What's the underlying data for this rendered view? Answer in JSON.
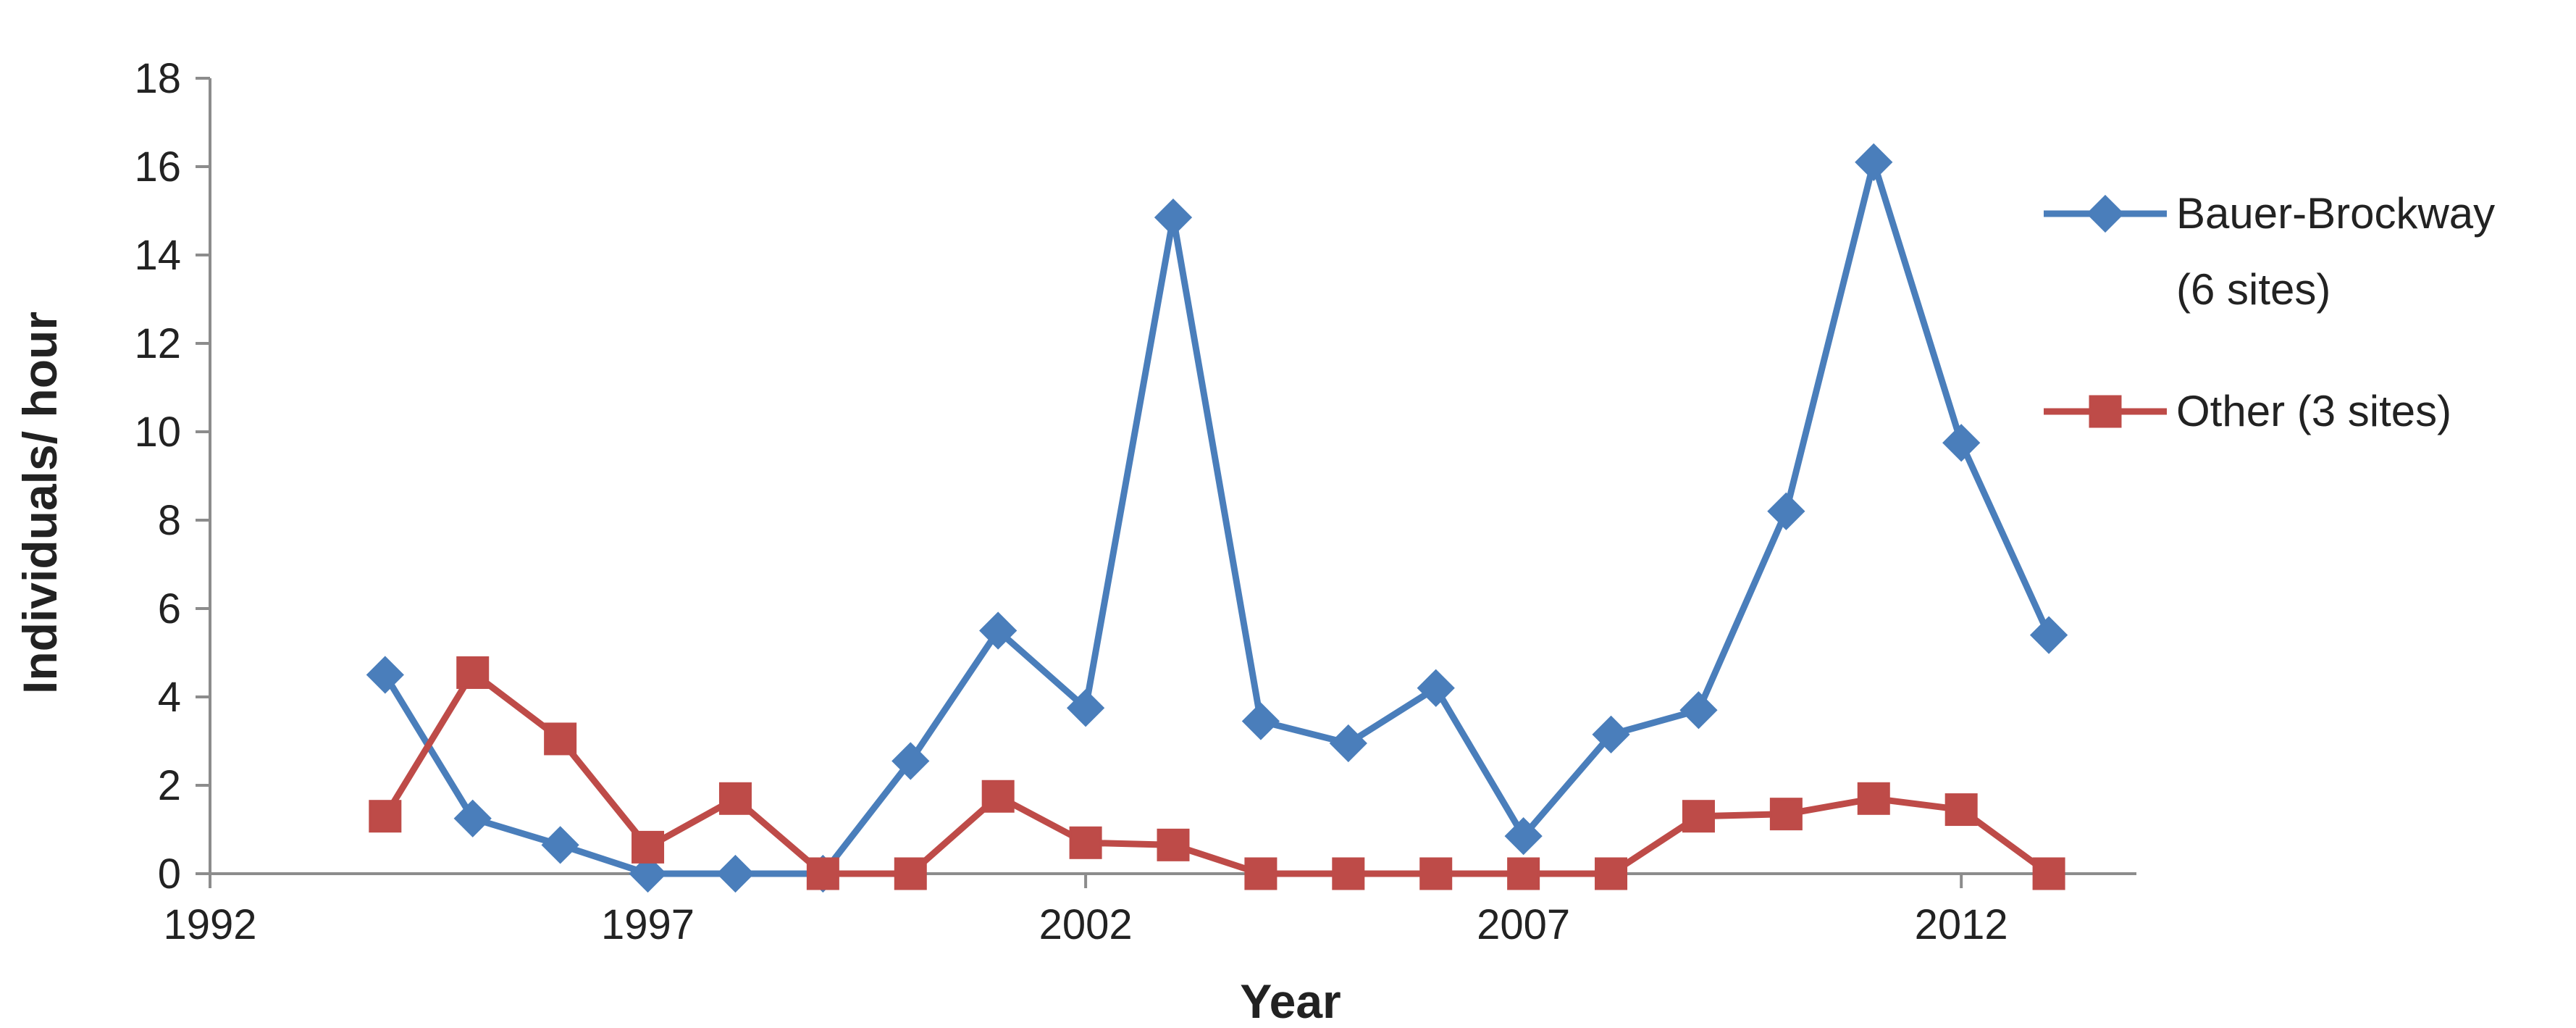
{
  "chart_data": {
    "type": "line",
    "xlabel": "Year",
    "ylabel": "Individuals/ hour",
    "xlim": [
      1992,
      2014
    ],
    "ylim": [
      0,
      18
    ],
    "x_ticks": [
      1992,
      1997,
      2002,
      2007,
      2012
    ],
    "y_ticks": [
      0,
      2,
      4,
      6,
      8,
      10,
      12,
      14,
      16,
      18
    ],
    "grid": false,
    "legend_position": "right",
    "series": [
      {
        "name": "Bauer-Brockway (6 sites)",
        "legend_lines": [
          "Bauer-Brockway",
          "(6 sites)"
        ],
        "color": "#4A7EBB",
        "marker": "diamond",
        "x": [
          1994,
          1995,
          1996,
          1997,
          1998,
          1999,
          2000,
          2001,
          2002,
          2003,
          2004,
          2005,
          2006,
          2007,
          2008,
          2009,
          2010,
          2011,
          2012,
          2013
        ],
        "y": [
          4.5,
          1.25,
          0.65,
          0,
          0,
          0,
          2.55,
          5.5,
          3.75,
          14.85,
          3.45,
          2.95,
          4.2,
          0.85,
          3.15,
          3.7,
          8.2,
          16.1,
          9.75,
          5.4
        ]
      },
      {
        "name": "Other (3 sites)",
        "legend_lines": [
          "Other (3 sites)"
        ],
        "color": "#BE4B48",
        "marker": "square",
        "x": [
          1994,
          1995,
          1996,
          1997,
          1998,
          1999,
          2000,
          2001,
          2002,
          2003,
          2004,
          2005,
          2006,
          2007,
          2008,
          2009,
          2010,
          2011,
          2012,
          2013
        ],
        "y": [
          1.3,
          4.55,
          3.05,
          0.6,
          1.7,
          0,
          0,
          1.75,
          0.7,
          0.65,
          0,
          0,
          0,
          0,
          0,
          1.3,
          1.35,
          1.7,
          1.45,
          0
        ]
      }
    ]
  }
}
